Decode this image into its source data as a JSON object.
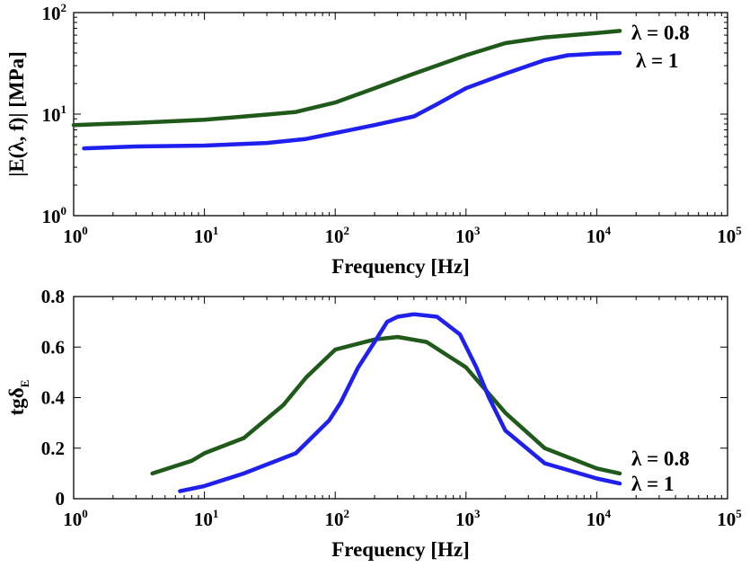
{
  "colors": {
    "green": "#1f5a1b",
    "blue": "#1f1fee"
  },
  "chart_data": [
    {
      "type": "line",
      "xscale": "log",
      "yscale": "log",
      "xlabel": "Frequency [Hz]",
      "ylabel": "|E(λ, f)| [MPa]",
      "xlim": [
        1,
        100000
      ],
      "ylim": [
        1,
        100
      ],
      "xticks": [
        {
          "base": "10",
          "exp": "0",
          "value": 1
        },
        {
          "base": "10",
          "exp": "1",
          "value": 10
        },
        {
          "base": "10",
          "exp": "2",
          "value": 100
        },
        {
          "base": "10",
          "exp": "3",
          "value": 1000
        },
        {
          "base": "10",
          "exp": "4",
          "value": 10000
        },
        {
          "base": "10",
          "exp": "5",
          "value": 100000
        }
      ],
      "yticks": [
        {
          "base": "10",
          "exp": "0",
          "value": 1
        },
        {
          "base": "10",
          "exp": "1",
          "value": 10
        },
        {
          "base": "10",
          "exp": "2",
          "value": 100
        }
      ],
      "grid": false,
      "series": [
        {
          "name": "λ = 0.8",
          "color": "green",
          "x": [
            1,
            3,
            10,
            30,
            50,
            100,
            200,
            400,
            1000,
            2000,
            4000,
            10000,
            15000
          ],
          "y": [
            7.8,
            8.2,
            8.8,
            9.9,
            10.5,
            13.0,
            18.0,
            25.0,
            38.0,
            50.0,
            57.0,
            63.0,
            66.0
          ]
        },
        {
          "name": "λ = 1",
          "color": "blue",
          "x": [
            1.2,
            3,
            10,
            30,
            60,
            100,
            200,
            400,
            600,
            1000,
            2000,
            4000,
            6000,
            10000,
            15000
          ],
          "y": [
            4.6,
            4.8,
            4.9,
            5.2,
            5.7,
            6.5,
            7.8,
            9.5,
            12.5,
            18.0,
            25.0,
            34.0,
            38.0,
            39.5,
            40.0
          ]
        }
      ]
    },
    {
      "type": "line",
      "xscale": "log",
      "xlabel": "Frequency [Hz]",
      "ylabel": "tgδ",
      "ylabel_sub": "E",
      "xlim": [
        1,
        100000
      ],
      "ylim": [
        0,
        0.8
      ],
      "xticks": [
        {
          "base": "10",
          "exp": "0",
          "value": 1
        },
        {
          "base": "10",
          "exp": "1",
          "value": 10
        },
        {
          "base": "10",
          "exp": "2",
          "value": 100
        },
        {
          "base": "10",
          "exp": "3",
          "value": 1000
        },
        {
          "base": "10",
          "exp": "4",
          "value": 10000
        },
        {
          "base": "10",
          "exp": "5",
          "value": 100000
        }
      ],
      "yticks": [
        {
          "label": "0",
          "value": 0
        },
        {
          "label": "0.2",
          "value": 0.2
        },
        {
          "label": "0.4",
          "value": 0.4
        },
        {
          "label": "0.6",
          "value": 0.6
        },
        {
          "label": "0.8",
          "value": 0.8
        }
      ],
      "grid": false,
      "series": [
        {
          "name": "λ = 0.8",
          "color": "green",
          "x": [
            4,
            8,
            10,
            20,
            40,
            60,
            100,
            200,
            300,
            500,
            1000,
            2000,
            4000,
            10000,
            15000
          ],
          "y": [
            0.1,
            0.15,
            0.18,
            0.24,
            0.37,
            0.48,
            0.59,
            0.63,
            0.64,
            0.62,
            0.52,
            0.34,
            0.2,
            0.12,
            0.1
          ]
        },
        {
          "name": "λ = 1",
          "color": "blue",
          "x": [
            6.5,
            10,
            20,
            50,
            90,
            110,
            150,
            200,
            250,
            300,
            400,
            600,
            900,
            1200,
            1500,
            2000,
            4000,
            10000,
            15000
          ],
          "y": [
            0.03,
            0.05,
            0.1,
            0.18,
            0.31,
            0.38,
            0.52,
            0.62,
            0.7,
            0.72,
            0.73,
            0.72,
            0.65,
            0.52,
            0.4,
            0.27,
            0.14,
            0.08,
            0.06
          ]
        }
      ]
    }
  ]
}
